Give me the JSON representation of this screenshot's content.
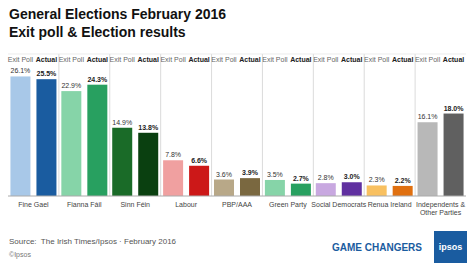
{
  "chart_data": {
    "type": "bar",
    "title": "General Elections February 2016",
    "subtitle": "Exit poll & Election results",
    "categories": [
      "Fine Gael",
      "Fianna Fáil",
      "Sinn Féin",
      "Labour",
      "PBP/AAA",
      "Green Party",
      "Social Democrats",
      "Renua Ireland",
      "Independents &\nOther Parties"
    ],
    "series": [
      {
        "name": "Exit Poll",
        "colors": [
          "#a8c8e8",
          "#86d4a8",
          "#1a6b28",
          "#f0a0a0",
          "#b8a888",
          "#86d4a8",
          "#c8a8e0",
          "#f8c060",
          "#b8b8b8"
        ],
        "values": [
          26.1,
          22.9,
          14.9,
          7.8,
          3.6,
          3.5,
          2.8,
          2.3,
          16.1
        ],
        "value_labels": [
          "26.1%",
          "22.9%",
          "14.9%",
          "7.8%",
          "3.6%",
          "3.5%",
          "2.8%",
          "2.3%",
          "16.1%"
        ]
      },
      {
        "name": "Actual",
        "colors": [
          "#1a5ca0",
          "#28a060",
          "#0a4010",
          "#cc1818",
          "#7a6840",
          "#28a060",
          "#6030a0",
          "#e07010",
          "#606060"
        ],
        "values": [
          25.5,
          24.3,
          13.8,
          6.6,
          3.9,
          2.7,
          3.0,
          2.2,
          18.0
        ],
        "value_labels": [
          "25.5%",
          "24.3%",
          "13.8%",
          "6.6%",
          "3.9%",
          "2.7%",
          "3.0%",
          "2.2%",
          "18.0%"
        ]
      }
    ],
    "ylim": [
      0,
      31
    ],
    "grid": false,
    "data_labels": true,
    "tick_labels": "x",
    "annotations": [
      "Source:  The Irish Times/Ipsos · February 2016",
      "©Ipsos",
      "GAME CHANGERS",
      "ipsos"
    ]
  }
}
